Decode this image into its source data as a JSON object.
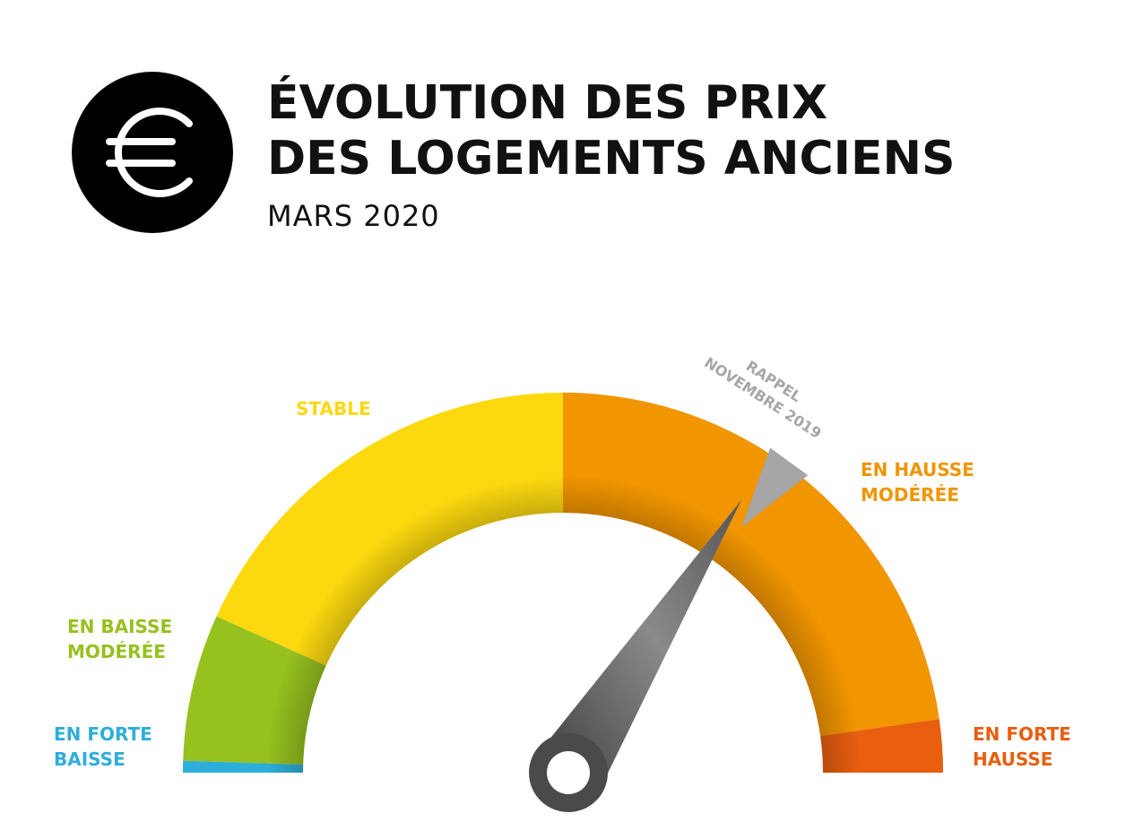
{
  "header": {
    "title_line1": "ÉVOLUTION DES PRIX",
    "title_line2": "DES LOGEMENTS ANCIENS",
    "subtitle": "MARS 2020",
    "logo_icon": "euro-icon"
  },
  "chart_data": {
    "type": "gauge",
    "title": "ÉVOLUTION DES PRIX DES LOGEMENTS ANCIENS",
    "subtitle": "MARS 2020",
    "segments": [
      {
        "name": "EN FORTE BAISSE",
        "label_lines": [
          "EN FORTE",
          "BAISSE"
        ],
        "from": 0.0,
        "to": 0.01,
        "color": "#2eaedb"
      },
      {
        "name": "EN BAISSE MODÉRÉE",
        "label_lines": [
          "EN BAISSE",
          "MODÉRÉE"
        ],
        "from": 0.01,
        "to": 0.135,
        "color": "#96c11f"
      },
      {
        "name": "STABLE",
        "label_lines": [
          "STABLE"
        ],
        "from": 0.135,
        "to": 0.5,
        "color": "#fcd90f"
      },
      {
        "name": "EN HAUSSE MODÉRÉE",
        "label_lines": [
          "EN HAUSSE",
          "MODÉRÉE"
        ],
        "from": 0.5,
        "to": 0.955,
        "color": "#f19500"
      },
      {
        "name": "EN FORTE HAUSSE",
        "label_lines": [
          "EN FORTE",
          "HAUSSE"
        ],
        "from": 0.955,
        "to": 1.0,
        "color": "#e95e0f"
      }
    ],
    "current_value": 0.68,
    "current_category": "EN HAUSSE MODÉRÉE",
    "reference": {
      "label_lines": [
        "RAPPEL",
        "NOVEMBRE 2019"
      ],
      "value": 0.7,
      "color": "#a6a6a6"
    }
  }
}
